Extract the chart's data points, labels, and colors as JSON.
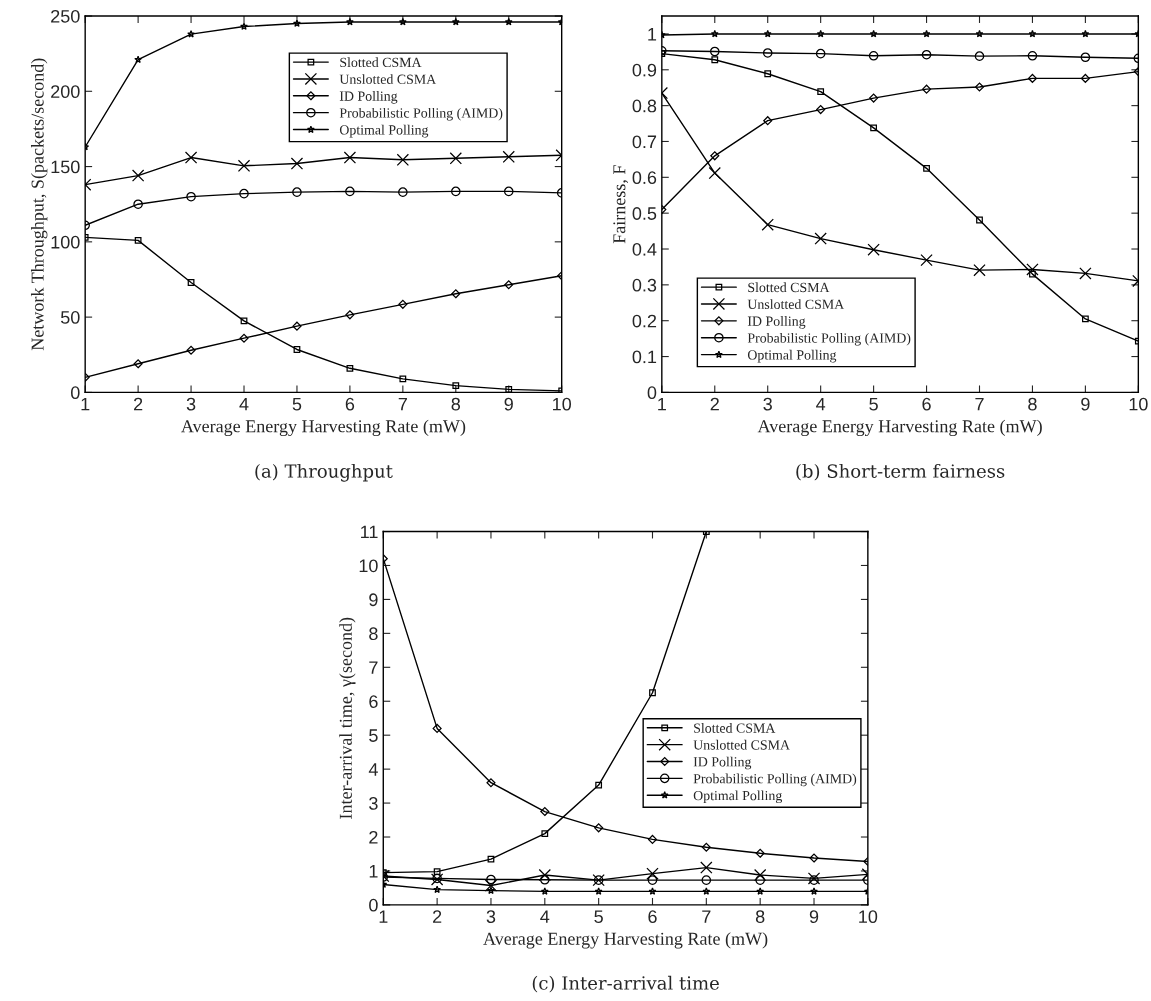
{
  "chart_data": [
    {
      "type": "line",
      "title": "(a) Throughput",
      "xlabel": "Average Energy Harvesting Rate (mW)",
      "ylabel": "Network Throughput, S(packets/second)",
      "x": [
        1,
        2,
        3,
        4,
        5,
        6,
        7,
        8,
        9,
        10
      ],
      "xlim": [
        1,
        10
      ],
      "xticks": [
        1,
        2,
        3,
        4,
        5,
        6,
        7,
        8,
        9,
        10
      ],
      "ylim": [
        0,
        250
      ],
      "yticks": [
        0,
        50,
        100,
        150,
        200,
        250
      ],
      "grid": false,
      "legend": "top right",
      "series": [
        {
          "name": "Slotted CSMA",
          "color": "#000000",
          "marker": "square",
          "values": [
            103,
            101,
            73,
            47.5,
            28.5,
            16,
            9,
            4.5,
            2,
            1
          ]
        },
        {
          "name": "Unslotted CSMA",
          "color": "#000000",
          "marker": "cross",
          "values": [
            138,
            144,
            156,
            150.5,
            152,
            156,
            154.5,
            155.5,
            156.5,
            157.5
          ]
        },
        {
          "name": "ID Polling",
          "color": "#000000",
          "marker": "diamond",
          "values": [
            10,
            19,
            28,
            36,
            44,
            51.5,
            58.5,
            65.5,
            71.5,
            77.5
          ]
        },
        {
          "name": "Probabilistic Polling (AIMD)",
          "color": "#000000",
          "marker": "circle",
          "values": [
            111,
            125,
            130,
            132,
            133,
            133.5,
            133,
            133.5,
            133.5,
            132.5
          ]
        },
        {
          "name": "Optimal Polling",
          "color": "#000000",
          "marker": "star",
          "values": [
            163,
            221,
            238,
            243,
            245,
            246,
            246,
            246,
            246,
            246
          ]
        }
      ]
    },
    {
      "type": "line",
      "title": "(b) Short-term fairness",
      "xlabel": "Average Energy Harvesting Rate (mW)",
      "ylabel": "Fairness, F",
      "x": [
        1,
        2,
        3,
        4,
        5,
        6,
        7,
        8,
        9,
        10
      ],
      "xlim": [
        1,
        10
      ],
      "xticks": [
        1,
        2,
        3,
        4,
        5,
        6,
        7,
        8,
        9,
        10
      ],
      "ylim": [
        0,
        1.05
      ],
      "yticks": [
        0,
        0.1,
        0.2,
        0.3,
        0.4,
        0.5,
        0.6,
        0.7,
        0.8,
        0.9,
        1
      ],
      "grid": false,
      "legend": "bottom left",
      "series": [
        {
          "name": "Slotted CSMA",
          "color": "#000000",
          "marker": "square",
          "values": [
            0.945,
            0.928,
            0.889,
            0.839,
            0.738,
            0.625,
            0.481,
            0.33,
            0.205,
            0.143
          ]
        },
        {
          "name": "Unslotted CSMA",
          "color": "#000000",
          "marker": "cross",
          "values": [
            0.835,
            0.612,
            0.468,
            0.429,
            0.398,
            0.369,
            0.341,
            0.343,
            0.332,
            0.311
          ]
        },
        {
          "name": "ID Polling",
          "color": "#000000",
          "marker": "diamond",
          "values": [
            0.51,
            0.66,
            0.758,
            0.789,
            0.821,
            0.846,
            0.852,
            0.876,
            0.876,
            0.895
          ]
        },
        {
          "name": "Probabilistic Polling (AIMD)",
          "color": "#000000",
          "marker": "circle",
          "values": [
            0.953,
            0.951,
            0.947,
            0.945,
            0.939,
            0.942,
            0.938,
            0.939,
            0.935,
            0.932
          ]
        },
        {
          "name": "Optimal Polling",
          "color": "#000000",
          "marker": "star",
          "values": [
            0.997,
            1,
            1,
            1,
            1,
            1,
            1,
            1,
            1,
            1
          ]
        }
      ]
    },
    {
      "type": "line",
      "title": "(c) Inter-arrival time",
      "xlabel": "Average Energy Harvesting Rate (mW)",
      "ylabel": "Inter-arrival time, γ(second)",
      "x": [
        1,
        2,
        3,
        4,
        5,
        6,
        7,
        8,
        9,
        10
      ],
      "xlim": [
        1,
        10
      ],
      "xticks": [
        1,
        2,
        3,
        4,
        5,
        6,
        7,
        8,
        9,
        10
      ],
      "ylim": [
        0,
        11
      ],
      "yticks": [
        0,
        1,
        2,
        3,
        4,
        5,
        6,
        7,
        8,
        9,
        10,
        11
      ],
      "grid": false,
      "legend": "right",
      "series": [
        {
          "name": "Slotted CSMA",
          "color": "#000000",
          "marker": "square",
          "values": [
            0.95,
            0.98,
            1.35,
            2.1,
            3.53,
            6.25,
            11,
            null,
            null,
            null
          ]
        },
        {
          "name": "Unslotted CSMA",
          "color": "#000000",
          "marker": "cross",
          "values": [
            0.85,
            0.75,
            0.57,
            0.88,
            0.73,
            0.92,
            1.1,
            0.88,
            0.78,
            0.9
          ]
        },
        {
          "name": "ID Polling",
          "color": "#000000",
          "marker": "diamond",
          "values": [
            10.2,
            5.2,
            3.6,
            2.75,
            2.27,
            1.93,
            1.7,
            1.52,
            1.38,
            1.28
          ]
        },
        {
          "name": "Probabilistic Polling (AIMD)",
          "color": "#000000",
          "marker": "circle",
          "values": [
            0.82,
            0.78,
            0.75,
            0.74,
            0.73,
            0.73,
            0.73,
            0.73,
            0.73,
            0.73
          ]
        },
        {
          "name": "Optimal Polling",
          "color": "#000000",
          "marker": "star",
          "values": [
            0.6,
            0.45,
            0.42,
            0.4,
            0.4,
            0.4,
            0.4,
            0.4,
            0.4,
            0.4
          ]
        }
      ]
    }
  ]
}
